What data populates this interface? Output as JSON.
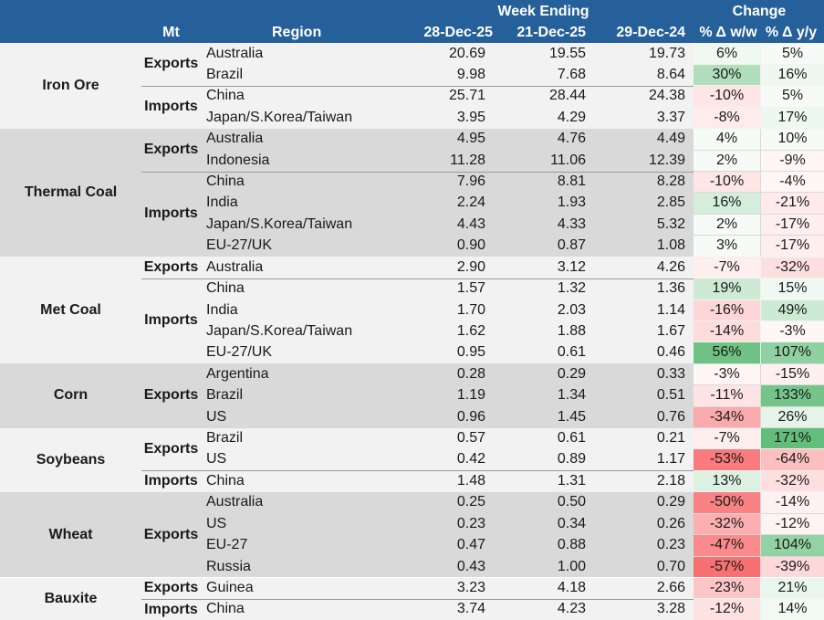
{
  "header": {
    "mt": "Mt",
    "region": "Region",
    "week_ending": "Week Ending",
    "change": "Change",
    "col_d1": "28-Dec-25",
    "col_d2": "21-Dec-25",
    "col_d3": "29-Dec-24",
    "col_ww": "% Δ w/w",
    "col_yy": "% Δ y/y"
  },
  "colors": {
    "header_bg": "#26609a",
    "band_light": "#f2f2f2",
    "band_dark": "#d9d9d9",
    "positive_base": "#63be7b",
    "negative_base": "#f8696b"
  },
  "groups": [
    {
      "commodity": "Iron Ore",
      "shade": "light",
      "subgroups": [
        {
          "flow": "Exports",
          "rows": [
            {
              "region": "Australia",
              "d1": "20.69",
              "d2": "19.55",
              "d3": "19.73",
              "ww": "6%",
              "yy": "5%",
              "ww_v": 6,
              "yy_v": 5
            },
            {
              "region": "Brazil",
              "d1": "9.98",
              "d2": "7.68",
              "d3": "8.64",
              "ww": "30%",
              "yy": "16%",
              "ww_v": 30,
              "yy_v": 16
            }
          ]
        },
        {
          "flow": "Imports",
          "rows": [
            {
              "region": "China",
              "d1": "25.71",
              "d2": "28.44",
              "d3": "24.38",
              "ww": "-10%",
              "yy": "5%",
              "ww_v": -10,
              "yy_v": 5
            },
            {
              "region": "Japan/S.Korea/Taiwan",
              "d1": "3.95",
              "d2": "4.29",
              "d3": "3.37",
              "ww": "-8%",
              "yy": "17%",
              "ww_v": -8,
              "yy_v": 17
            }
          ]
        }
      ]
    },
    {
      "commodity": "Thermal Coal",
      "shade": "dark",
      "subgroups": [
        {
          "flow": "Exports",
          "rows": [
            {
              "region": "Australia",
              "d1": "4.95",
              "d2": "4.76",
              "d3": "4.49",
              "ww": "4%",
              "yy": "10%",
              "ww_v": 4,
              "yy_v": 10
            },
            {
              "region": "Indonesia",
              "d1": "11.28",
              "d2": "11.06",
              "d3": "12.39",
              "ww": "2%",
              "yy": "-9%",
              "ww_v": 2,
              "yy_v": -9
            }
          ]
        },
        {
          "flow": "Imports",
          "rows": [
            {
              "region": "China",
              "d1": "7.96",
              "d2": "8.81",
              "d3": "8.28",
              "ww": "-10%",
              "yy": "-4%",
              "ww_v": -10,
              "yy_v": -4
            },
            {
              "region": "India",
              "d1": "2.24",
              "d2": "1.93",
              "d3": "2.85",
              "ww": "16%",
              "yy": "-21%",
              "ww_v": 16,
              "yy_v": -21
            },
            {
              "region": "Japan/S.Korea/Taiwan",
              "d1": "4.43",
              "d2": "4.33",
              "d3": "5.32",
              "ww": "2%",
              "yy": "-17%",
              "ww_v": 2,
              "yy_v": -17
            },
            {
              "region": "EU-27/UK",
              "d1": "0.90",
              "d2": "0.87",
              "d3": "1.08",
              "ww": "3%",
              "yy": "-17%",
              "ww_v": 3,
              "yy_v": -17
            }
          ]
        }
      ]
    },
    {
      "commodity": "Met Coal",
      "shade": "light",
      "subgroups": [
        {
          "flow": "Exports",
          "rows": [
            {
              "region": "Australia",
              "d1": "2.90",
              "d2": "3.12",
              "d3": "4.26",
              "ww": "-7%",
              "yy": "-32%",
              "ww_v": -7,
              "yy_v": -32
            }
          ]
        },
        {
          "flow": "Imports",
          "rows": [
            {
              "region": "China",
              "d1": "1.57",
              "d2": "1.32",
              "d3": "1.36",
              "ww": "19%",
              "yy": "15%",
              "ww_v": 19,
              "yy_v": 15
            },
            {
              "region": "India",
              "d1": "1.70",
              "d2": "2.03",
              "d3": "1.14",
              "ww": "-16%",
              "yy": "49%",
              "ww_v": -16,
              "yy_v": 49
            },
            {
              "region": "Japan/S.Korea/Taiwan",
              "d1": "1.62",
              "d2": "1.88",
              "d3": "1.67",
              "ww": "-14%",
              "yy": "-3%",
              "ww_v": -14,
              "yy_v": -3
            },
            {
              "region": "EU-27/UK",
              "d1": "0.95",
              "d2": "0.61",
              "d3": "0.46",
              "ww": "56%",
              "yy": "107%",
              "ww_v": 56,
              "yy_v": 107
            }
          ]
        }
      ]
    },
    {
      "commodity": "Corn",
      "shade": "dark",
      "subgroups": [
        {
          "flow": "Exports",
          "rows": [
            {
              "region": "Argentina",
              "d1": "0.28",
              "d2": "0.29",
              "d3": "0.33",
              "ww": "-3%",
              "yy": "-15%",
              "ww_v": -3,
              "yy_v": -15
            },
            {
              "region": "Brazil",
              "d1": "1.19",
              "d2": "1.34",
              "d3": "0.51",
              "ww": "-11%",
              "yy": "133%",
              "ww_v": -11,
              "yy_v": 133
            },
            {
              "region": "US",
              "d1": "0.96",
              "d2": "1.45",
              "d3": "0.76",
              "ww": "-34%",
              "yy": "26%",
              "ww_v": -34,
              "yy_v": 26
            }
          ]
        }
      ]
    },
    {
      "commodity": "Soybeans",
      "shade": "light",
      "subgroups": [
        {
          "flow": "Exports",
          "rows": [
            {
              "region": "Brazil",
              "d1": "0.57",
              "d2": "0.61",
              "d3": "0.21",
              "ww": "-7%",
              "yy": "171%",
              "ww_v": -7,
              "yy_v": 171
            },
            {
              "region": "US",
              "d1": "0.42",
              "d2": "0.89",
              "d3": "1.17",
              "ww": "-53%",
              "yy": "-64%",
              "ww_v": -53,
              "yy_v": -64
            }
          ]
        },
        {
          "flow": "Imports",
          "rows": [
            {
              "region": "China",
              "d1": "1.48",
              "d2": "1.31",
              "d3": "2.18",
              "ww": "13%",
              "yy": "-32%",
              "ww_v": 13,
              "yy_v": -32
            }
          ]
        }
      ]
    },
    {
      "commodity": "Wheat",
      "shade": "dark",
      "subgroups": [
        {
          "flow": "Exports",
          "rows": [
            {
              "region": "Australia",
              "d1": "0.25",
              "d2": "0.50",
              "d3": "0.29",
              "ww": "-50%",
              "yy": "-14%",
              "ww_v": -50,
              "yy_v": -14
            },
            {
              "region": "US",
              "d1": "0.23",
              "d2": "0.34",
              "d3": "0.26",
              "ww": "-32%",
              "yy": "-12%",
              "ww_v": -32,
              "yy_v": -12
            },
            {
              "region": "EU-27",
              "d1": "0.47",
              "d2": "0.88",
              "d3": "0.23",
              "ww": "-47%",
              "yy": "104%",
              "ww_v": -47,
              "yy_v": 104
            },
            {
              "region": "Russia",
              "d1": "0.43",
              "d2": "1.00",
              "d3": "0.70",
              "ww": "-57%",
              "yy": "-39%",
              "ww_v": -57,
              "yy_v": -39
            }
          ]
        }
      ]
    },
    {
      "commodity": "Bauxite",
      "shade": "light",
      "subgroups": [
        {
          "flow": "Exports",
          "rows": [
            {
              "region": "Guinea",
              "d1": "3.23",
              "d2": "4.18",
              "d3": "2.66",
              "ww": "-23%",
              "yy": "21%",
              "ww_v": -23,
              "yy_v": 21
            }
          ]
        },
        {
          "flow": "Imports",
          "rows": [
            {
              "region": "China",
              "d1": "3.74",
              "d2": "4.23",
              "d3": "3.28",
              "ww": "-12%",
              "yy": "14%",
              "ww_v": -12,
              "yy_v": 14
            }
          ]
        }
      ]
    }
  ]
}
